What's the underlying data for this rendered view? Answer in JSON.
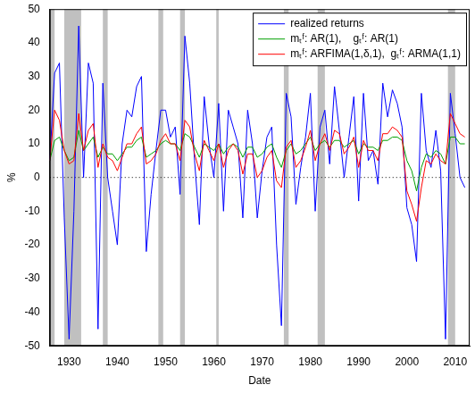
{
  "chart_data": {
    "type": "line",
    "x_label": "Date",
    "y_label": "%",
    "x": [
      1926,
      1927,
      1928,
      1929,
      1930,
      1931,
      1932,
      1933,
      1934,
      1935,
      1936,
      1937,
      1938,
      1939,
      1940,
      1941,
      1942,
      1943,
      1944,
      1945,
      1946,
      1947,
      1948,
      1949,
      1950,
      1951,
      1952,
      1953,
      1954,
      1955,
      1956,
      1957,
      1958,
      1959,
      1960,
      1961,
      1962,
      1963,
      1964,
      1965,
      1966,
      1967,
      1968,
      1969,
      1970,
      1971,
      1972,
      1973,
      1974,
      1975,
      1976,
      1977,
      1978,
      1979,
      1980,
      1981,
      1982,
      1983,
      1984,
      1985,
      1986,
      1987,
      1988,
      1989,
      1990,
      1991,
      1992,
      1993,
      1994,
      1995,
      1996,
      1997,
      1998,
      1999,
      2000,
      2001,
      2002,
      2003,
      2004,
      2005,
      2006,
      2007,
      2008,
      2009,
      2010,
      2011,
      2012
    ],
    "series": [
      {
        "name": "realized returns",
        "color": "#0000ff",
        "values": [
          5,
          31,
          34,
          -12,
          -48,
          -10,
          45,
          0,
          34,
          28,
          -45,
          28,
          0,
          -10,
          -20,
          10,
          20,
          18,
          27,
          30,
          -22,
          -5,
          8,
          20,
          20,
          12,
          15,
          -5,
          42,
          28,
          5,
          -14,
          24,
          10,
          0,
          22,
          -10,
          20,
          15,
          10,
          -12,
          20,
          10,
          -12,
          2,
          12,
          15,
          -20,
          -44,
          25,
          18,
          -8,
          3,
          12,
          25,
          -10,
          15,
          20,
          4,
          27,
          14,
          0,
          12,
          24,
          -7,
          25,
          5,
          8,
          -2,
          28,
          18,
          26,
          22,
          15,
          -9,
          -14,
          -25,
          25,
          8,
          3,
          14,
          2,
          -48,
          25,
          13,
          0,
          -3
        ]
      },
      {
        "name": "mₜᶠ: AR(1),    gₜᶠ: AR(1)",
        "color": "#00a000",
        "values": [
          5,
          11,
          12,
          8,
          5,
          6,
          14,
          8,
          10,
          12,
          6,
          9,
          7,
          7,
          5,
          7,
          9,
          9,
          11,
          12,
          6,
          7,
          8,
          10,
          11,
          10,
          10,
          8,
          13,
          12,
          9,
          6,
          10,
          9,
          8,
          10,
          7,
          9,
          10,
          9,
          6,
          9,
          9,
          6,
          7,
          9,
          10,
          6,
          3,
          8,
          10,
          7,
          8,
          10,
          12,
          8,
          10,
          11,
          9,
          11,
          11,
          9,
          10,
          11,
          7,
          10,
          9,
          9,
          8,
          11,
          11,
          12,
          12,
          11,
          5,
          2,
          -4,
          3,
          7,
          6,
          8,
          7,
          4,
          12,
          12,
          10,
          10
        ]
      },
      {
        "name": "mₜᶠ: ARFIMA(1,δ,1),  gₜᶠ: ARMA(1,1)",
        "color": "#ff0000",
        "values": [
          5,
          20,
          17,
          8,
          4,
          5,
          19,
          8,
          14,
          16,
          3,
          10,
          6,
          5,
          2,
          6,
          10,
          10,
          13,
          15,
          4,
          5,
          7,
          11,
          13,
          10,
          10,
          5,
          17,
          15,
          7,
          2,
          11,
          8,
          5,
          10,
          3,
          8,
          10,
          8,
          1,
          7,
          7,
          0,
          2,
          6,
          8,
          -1,
          -3,
          9,
          11,
          3,
          5,
          9,
          14,
          5,
          10,
          13,
          8,
          14,
          13,
          7,
          9,
          12,
          3,
          11,
          8,
          8,
          5,
          13,
          13,
          15,
          14,
          12,
          -4,
          -8,
          -13,
          -3,
          5,
          4,
          7,
          5,
          4,
          19,
          16,
          13,
          12
        ]
      }
    ],
    "xlim": [
      1926,
      2013
    ],
    "xticks": [
      1930,
      1940,
      1950,
      1960,
      1970,
      1980,
      1990,
      2000,
      2010
    ],
    "ylim": [
      -50,
      50
    ],
    "yticks": [
      -50,
      -40,
      -30,
      -20,
      -10,
      0,
      10,
      20,
      30,
      40,
      50
    ],
    "grid": false,
    "legend": "upper right",
    "shaded_periods": [
      [
        1926,
        1927
      ],
      [
        1929,
        1932.5
      ],
      [
        1937,
        1938
      ],
      [
        1948.5,
        1949.5
      ],
      [
        1953,
        1954
      ],
      [
        1960.5,
        1961
      ],
      [
        1974.5,
        1975.5
      ],
      [
        1981.5,
        1983
      ],
      [
        2008.5,
        2010
      ]
    ],
    "reference_y": 0
  }
}
